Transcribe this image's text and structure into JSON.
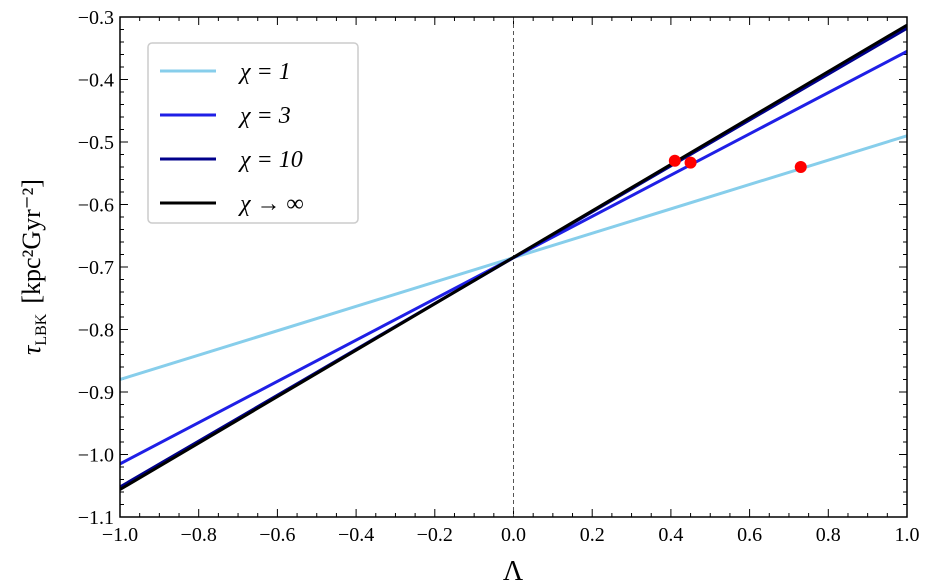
{
  "chart_data": {
    "type": "line",
    "xlabel": "Λ",
    "ylabel_symbol": "τ",
    "ylabel_subscript": "LBK",
    "ylabel_unit": "[kpc²Gyr⁻²]",
    "x": [
      -1,
      1
    ],
    "series": [
      {
        "name": "χ = 1",
        "color": "#87ceeb",
        "values": [
          -0.88,
          -0.49
        ]
      },
      {
        "name": "χ = 3",
        "color": "#1f1fe6",
        "values": [
          -1.015,
          -0.355
        ]
      },
      {
        "name": "χ = 10",
        "color": "#00008b",
        "values": [
          -1.052,
          -0.318
        ]
      },
      {
        "name": "χ → ∞",
        "color": "#000000",
        "values": [
          -1.056,
          -0.313
        ]
      }
    ],
    "points": {
      "x": [
        0.41,
        0.45,
        0.73
      ],
      "y": [
        -0.53,
        -0.533,
        -0.54
      ],
      "color": "#ff0000"
    },
    "vline_x": 0,
    "xlim": [
      -1,
      1
    ],
    "ylim": [
      -1.1,
      -0.3
    ],
    "xticks": [
      {
        "value": -1,
        "label": "−1.0"
      },
      {
        "value": -0.8,
        "label": "−0.8"
      },
      {
        "value": -0.6,
        "label": "−0.6"
      },
      {
        "value": -0.4,
        "label": "−0.4"
      },
      {
        "value": -0.2,
        "label": "−0.2"
      },
      {
        "value": 0,
        "label": "0.0"
      },
      {
        "value": 0.2,
        "label": "0.2"
      },
      {
        "value": 0.4,
        "label": "0.4"
      },
      {
        "value": 0.6,
        "label": "0.6"
      },
      {
        "value": 0.8,
        "label": "0.8"
      },
      {
        "value": 1,
        "label": "1.0"
      }
    ],
    "yticks": [
      {
        "value": -1.1,
        "label": "−1.1"
      },
      {
        "value": -1.0,
        "label": "−1.0"
      },
      {
        "value": -0.9,
        "label": "−0.9"
      },
      {
        "value": -0.8,
        "label": "−0.8"
      },
      {
        "value": -0.7,
        "label": "−0.7"
      },
      {
        "value": -0.6,
        "label": "−0.6"
      },
      {
        "value": -0.5,
        "label": "−0.5"
      },
      {
        "value": -0.4,
        "label": "−0.4"
      },
      {
        "value": -0.3,
        "label": "−0.3"
      }
    ],
    "legend": "upper left",
    "grid": false
  }
}
